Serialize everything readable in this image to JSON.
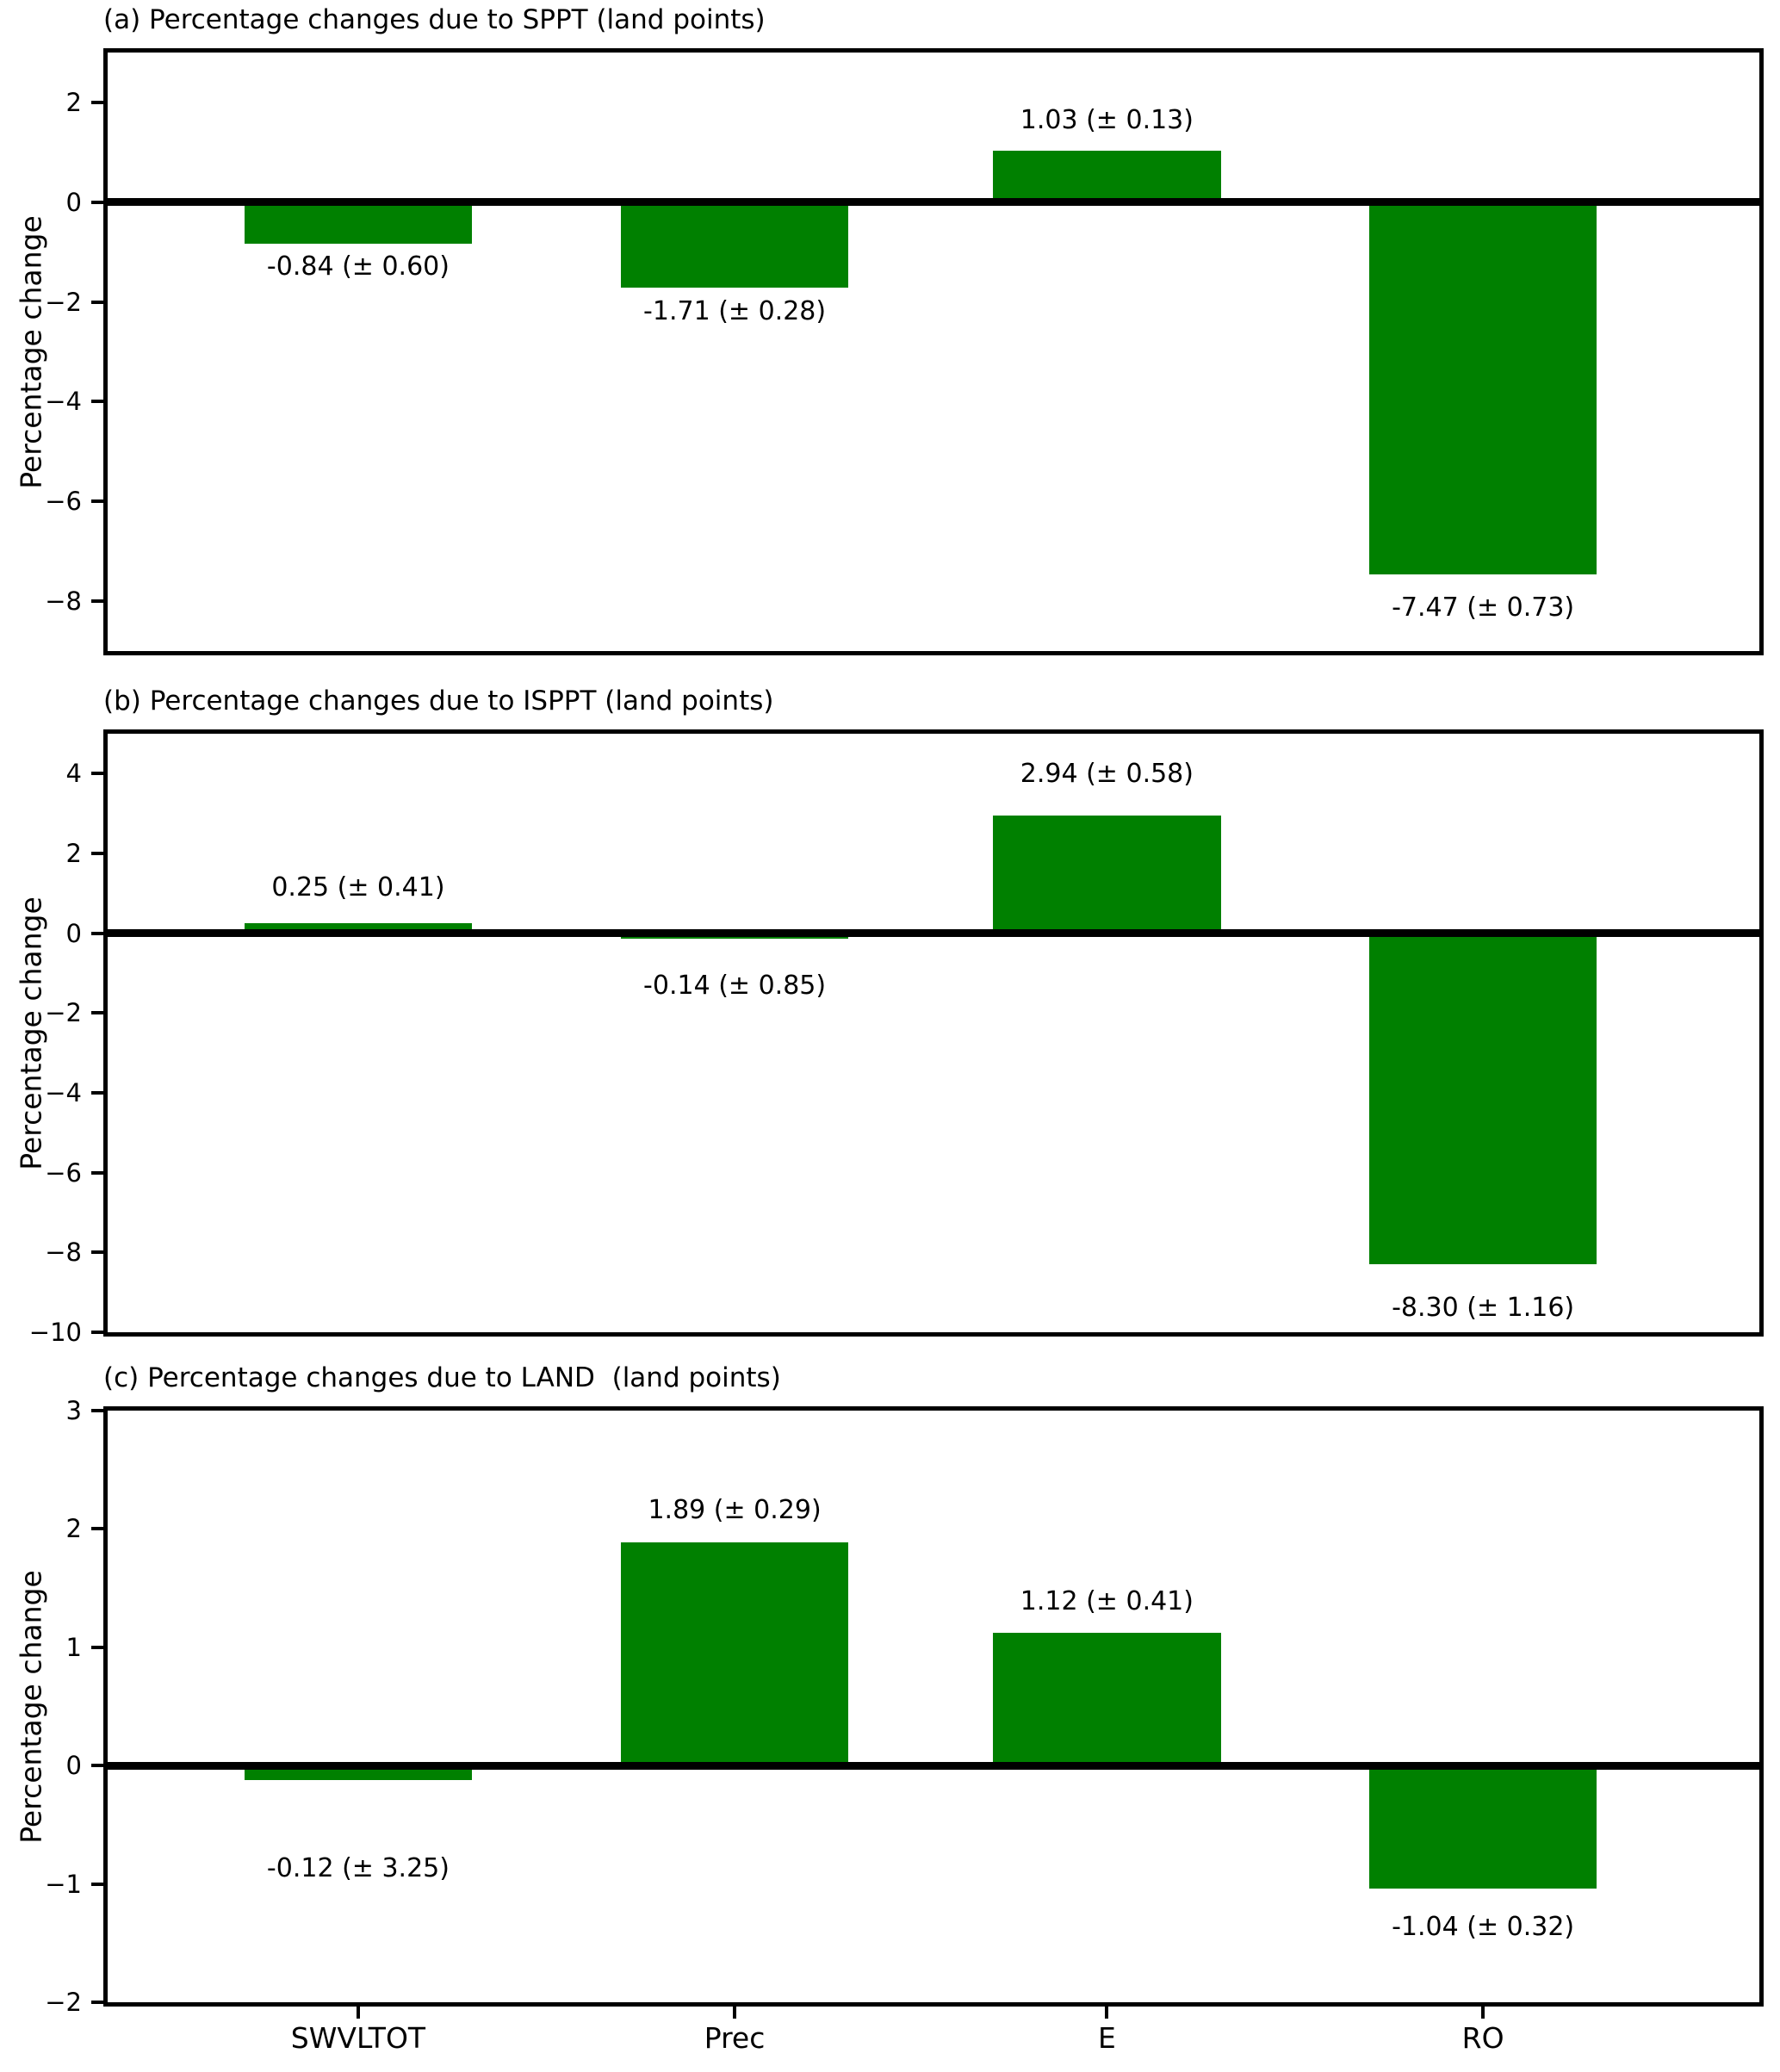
{
  "figure": {
    "background": "#ffffff",
    "axis_color": "#000000",
    "text_color": "#000000",
    "bar_color": "#008000"
  },
  "chart_data": [
    {
      "type": "bar",
      "panel": "a",
      "title": "(a) Percentage changes due to SPPT (land points)",
      "ylabel": "Percentage change",
      "categories": [
        "SWVLTOT",
        "Prec",
        "E",
        "RO"
      ],
      "values": [
        -0.84,
        -1.71,
        1.03,
        -7.47
      ],
      "errors": [
        0.6,
        0.28,
        0.13,
        0.73
      ],
      "bar_labels": [
        "-0.84 (± 0.60)",
        "-1.71 (± 0.28)",
        "1.03 (± 0.13)",
        "-7.47 (± 0.73)"
      ],
      "label_anchor_y": [
        -1.0,
        -1.9,
        1.35,
        -7.85
      ],
      "ylim": [
        -9,
        3
      ],
      "ytick_values": [
        2,
        0,
        -2,
        -4,
        -6,
        -8
      ],
      "ytick_labels": [
        "2",
        "0",
        "−2",
        "−4",
        "−6",
        "−8"
      ],
      "bar_color": "#008000",
      "show_x_tick_labels": false,
      "grid": false,
      "legend": null
    },
    {
      "type": "bar",
      "panel": "b",
      "title": "(b) Percentage changes due to ISPPT (land points)",
      "ylabel": "Percentage change",
      "categories": [
        "SWVLTOT",
        "Prec",
        "E",
        "RO"
      ],
      "values": [
        0.25,
        -0.14,
        2.94,
        -8.3
      ],
      "errors": [
        0.41,
        0.85,
        0.58,
        1.16
      ],
      "bar_labels": [
        "0.25 (± 0.41)",
        "-0.14 (± 0.85)",
        "2.94 (± 0.58)",
        "-8.30 (± 1.16)"
      ],
      "label_anchor_y": [
        0.76,
        -0.95,
        3.62,
        -9.02
      ],
      "ylim": [
        -10,
        5
      ],
      "ytick_values": [
        4,
        2,
        0,
        -2,
        -4,
        -6,
        -8,
        -10
      ],
      "ytick_labels": [
        "4",
        "2",
        "0",
        "−2",
        "−4",
        "−6",
        "−8",
        "−10"
      ],
      "bar_color": "#008000",
      "show_x_tick_labels": false,
      "grid": false,
      "legend": null
    },
    {
      "type": "bar",
      "panel": "c",
      "title": "(c) Percentage changes due to LAND  (land points)",
      "ylabel": "Percentage change",
      "categories": [
        "SWVLTOT",
        "Prec",
        "E",
        "RO"
      ],
      "values": [
        -0.12,
        1.89,
        1.12,
        -1.04
      ],
      "errors": [
        3.25,
        0.29,
        0.41,
        0.32
      ],
      "bar_labels": [
        "-0.12 (± 3.25)",
        "1.89 (± 0.29)",
        "1.12 (± 0.41)",
        "-1.04 (± 0.32)"
      ],
      "label_anchor_y": [
        -0.75,
        2.03,
        1.26,
        -1.24
      ],
      "ylim": [
        -2,
        3
      ],
      "ytick_values": [
        3,
        2,
        1,
        0,
        -1,
        -2
      ],
      "ytick_labels": [
        "3",
        "2",
        "1",
        "0",
        "−1",
        "−2"
      ],
      "bar_color": "#008000",
      "show_x_tick_labels": true,
      "grid": false,
      "legend": null
    }
  ]
}
